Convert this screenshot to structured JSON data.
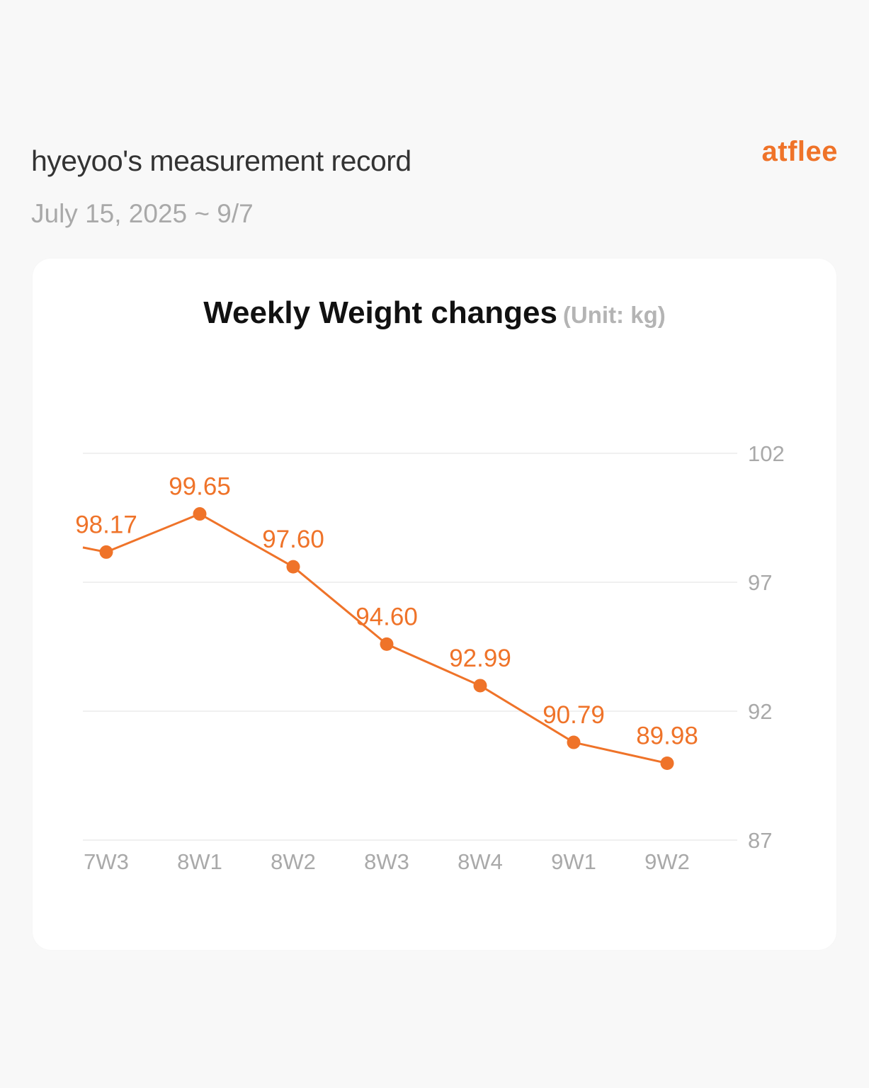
{
  "header": {
    "title": "hyeyoo's measurement record",
    "date_range": "July 15, 2025 ~ 9/7",
    "brand": "atflee"
  },
  "colors": {
    "accent": "#ef7329",
    "background": "#f8f8f8",
    "card": "#ffffff",
    "grid": "#ececec",
    "axis_text": "#a9a9a9"
  },
  "chart_data": {
    "type": "line",
    "title": "Weekly Weight changes",
    "unit_label": "(Unit: kg)",
    "categories": [
      "7W3",
      "8W1",
      "8W2",
      "8W3",
      "8W4",
      "9W1",
      "9W2"
    ],
    "values": [
      98.17,
      99.65,
      97.6,
      94.6,
      92.99,
      90.79,
      89.98
    ],
    "value_labels": [
      "98.17",
      "99.65",
      "97.60",
      "94.60",
      "92.99",
      "90.79",
      "89.98"
    ],
    "y_ticks": [
      102,
      97,
      92,
      87
    ],
    "ylim": [
      87,
      102
    ],
    "y_axis_side": "right",
    "grid": true,
    "line_enters_from_left_edge": true,
    "lead_in_value": 98.35
  }
}
